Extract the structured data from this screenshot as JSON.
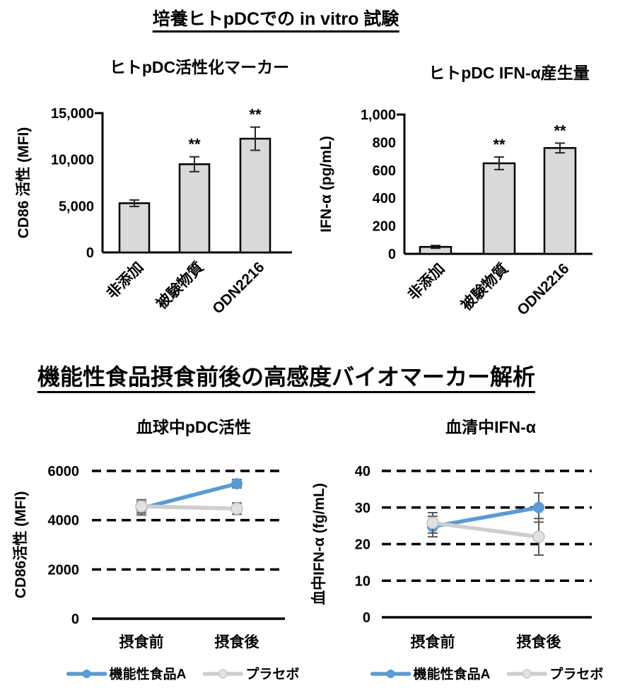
{
  "page": {
    "background": "#FFFFFF"
  },
  "sections": [
    {
      "title": "培養ヒトpDCでの in vitro 試験"
    },
    {
      "title": "機能性食品摂食前後の高感度バイオマーカー解析"
    }
  ],
  "colors": {
    "axis": "#000000",
    "bar_fill": "#D9D9D9",
    "bar_border": "#000000",
    "bar_error": "#262626",
    "line_error": "#595959",
    "series_blue": "#5B9BD5",
    "series_gray": "#CFCECE"
  },
  "chart_data": [
    {
      "type": "bar",
      "id": "pdc-activation-marker",
      "title": "ヒトpDC活性化マーカー",
      "ylabel": "CD86 活性 (MFI)",
      "categories": [
        "非添加",
        "被験物質",
        "ODN2216"
      ],
      "values": [
        5300,
        9500,
        12250
      ],
      "errors": [
        350,
        800,
        1250
      ],
      "annotations": [
        "",
        "**",
        "**"
      ],
      "ylim": [
        0,
        15000
      ],
      "yticks": [
        0,
        5000,
        10000,
        15000
      ],
      "ytick_labels": [
        "0",
        "5,000",
        "10,000",
        "15,000"
      ],
      "grid": false,
      "legend_position": "none"
    },
    {
      "type": "bar",
      "id": "ifn-alpha-production",
      "title": "ヒトpDC IFN-α産生量",
      "ylabel": "IFN-α (pg/mL)",
      "categories": [
        "非添加",
        "被験物質",
        "ODN2216"
      ],
      "values": [
        50,
        650,
        760
      ],
      "errors": [
        10,
        45,
        35
      ],
      "annotations": [
        "",
        "**",
        "**"
      ],
      "ylim": [
        0,
        1000
      ],
      "yticks": [
        0,
        200,
        400,
        600,
        800,
        1000
      ],
      "ytick_labels": [
        "0",
        "200",
        "400",
        "600",
        "800",
        "1,000"
      ],
      "grid": false,
      "legend_position": "none"
    },
    {
      "type": "line",
      "id": "blood-pdc-activity",
      "title": "血球中pDC活性",
      "ylabel": "CD86活性 (MFI)",
      "categories": [
        "摂食前",
        "摂食後"
      ],
      "series": [
        {
          "name": "機能性食品A",
          "color": "#5B9BD5",
          "marker_fill": "#5B9BD5",
          "values": [
            4480,
            5480
          ],
          "errors": [
            270,
            170
          ]
        },
        {
          "name": "プラセボ",
          "color": "#CFCECE",
          "marker_fill": "#E3E2E2",
          "marker_stroke": "#BFBFBF",
          "values": [
            4560,
            4470
          ],
          "errors": [
            270,
            230
          ]
        }
      ],
      "ylim": [
        0,
        6000
      ],
      "yticks": [
        0,
        2000,
        4000,
        6000
      ],
      "ytick_labels": [
        "0",
        "2000",
        "4000",
        "6000"
      ],
      "grid": "dashed",
      "legend_position": "bottom"
    },
    {
      "type": "line",
      "id": "serum-ifn-alpha",
      "title": "血清中IFN-α",
      "ylabel": "血中IFN-α (fg/mL)",
      "categories": [
        "摂食前",
        "摂食後"
      ],
      "series": [
        {
          "name": "機能性食品A",
          "color": "#5B9BD5",
          "marker_fill": "#5B9BD5",
          "values": [
            24.8,
            30
          ],
          "errors": [
            2.8,
            4
          ]
        },
        {
          "name": "プラセボ",
          "color": "#CFCECE",
          "marker_fill": "#E3E2E2",
          "marker_stroke": "#BFBFBF",
          "values": [
            25.8,
            22
          ],
          "errors": [
            2.8,
            5
          ]
        }
      ],
      "ylim": [
        0,
        40
      ],
      "yticks": [
        0,
        10,
        20,
        30,
        40
      ],
      "ytick_labels": [
        "0",
        "10",
        "20",
        "30",
        "40"
      ],
      "grid": "dashed",
      "legend_position": "bottom"
    }
  ]
}
